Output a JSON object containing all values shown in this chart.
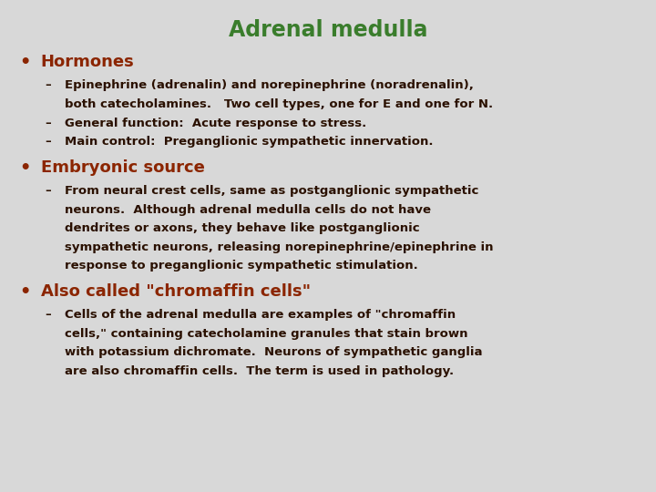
{
  "title": "Adrenal medulla",
  "title_color": "#3a7d2c",
  "title_fontsize": 17,
  "bullet_color": "#8B2500",
  "sub_color": "#2a1000",
  "bg_color": "#d8d8d8",
  "bullet_fs": 13,
  "sub_fs": 9.5,
  "bullets": [
    {
      "text": "Hormones",
      "sub_items": [
        [
          "Epinephrine (adrenalin) and norepinephrine (noradrenalin),",
          "both catecholamines.   Two cell types, one for E and one for N."
        ],
        [
          "General function:  Acute response to stress."
        ],
        [
          "Main control:  Preganglionic sympathetic innervation."
        ]
      ]
    },
    {
      "text": "Embryonic source",
      "sub_items": [
        [
          "From neural crest cells, same as postganglionic sympathetic",
          "neurons.  Although adrenal medulla cells do not have",
          "dendrites or axons, they behave like postganglionic",
          "sympathetic neurons, releasing norepinephrine/epinephrine in",
          "response to preganglionic sympathetic stimulation."
        ]
      ]
    },
    {
      "text": "Also called \"chromaffin cells\"",
      "sub_items": [
        [
          "Cells of the adrenal medulla are examples of \"chromaffin",
          "cells,\" containing catecholamine granules that stain brown",
          "with potassium dichromate.  Neurons of sympathetic ganglia",
          "are also chromaffin cells.  The term is used in pathology."
        ]
      ]
    }
  ]
}
